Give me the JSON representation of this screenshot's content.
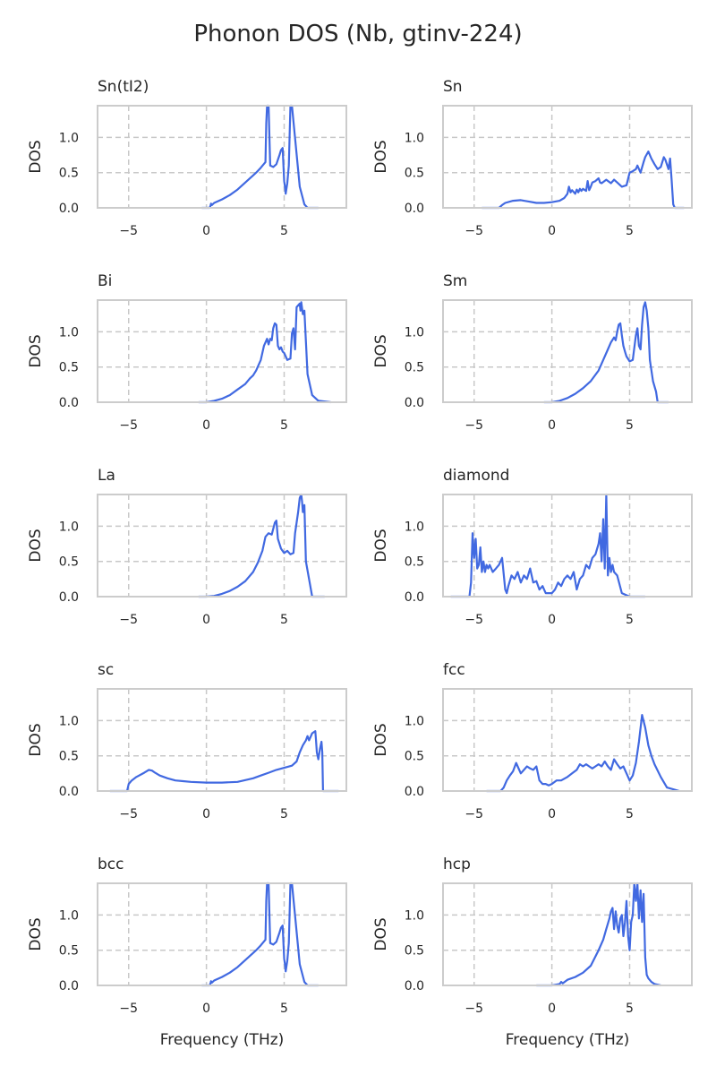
{
  "figure": {
    "title": "Phonon DOS (Nb, gtinv-224)"
  },
  "chart_data": [
    {
      "type": "line",
      "title": "Sn(tI2)",
      "xlabel": "",
      "ylabel": "DOS",
      "xlim": [
        -7,
        9
      ],
      "ylim": [
        0,
        1.45
      ],
      "xticks": [
        -5,
        0,
        5
      ],
      "yticks": [
        0.0,
        0.5,
        1.0
      ],
      "grid": true,
      "series": [
        {
          "x": [
            -0.3,
            0.2,
            0.25,
            0.3,
            0.35,
            0.5,
            1,
            1.5,
            2,
            2.5,
            3,
            3.2,
            3.5,
            3.8,
            3.85,
            3.9,
            4,
            4.1,
            4.3,
            4.5,
            4.7,
            4.8,
            4.9,
            5,
            5.05,
            5.1,
            5.2,
            5.3,
            5.4,
            5.5,
            6,
            6.3,
            6.5,
            7.2
          ],
          "y": [
            0,
            0,
            0.02,
            0.06,
            0.04,
            0.07,
            0.12,
            0.18,
            0.26,
            0.36,
            0.46,
            0.5,
            0.57,
            0.65,
            1.2,
            1.45,
            1.45,
            0.6,
            0.58,
            0.62,
            0.75,
            0.82,
            0.85,
            0.38,
            0.3,
            0.2,
            0.35,
            0.6,
            1.45,
            1.45,
            0.3,
            0.05,
            0,
            0
          ]
        }
      ]
    },
    {
      "type": "line",
      "title": "Sn",
      "xlabel": "",
      "ylabel": "DOS",
      "xlim": [
        -7,
        9
      ],
      "ylim": [
        0,
        1.45
      ],
      "xticks": [
        -5,
        0,
        5
      ],
      "yticks": [
        0.0,
        0.5,
        1.0
      ],
      "grid": true,
      "series": [
        {
          "x": [
            -4.5,
            -3.4,
            -3.2,
            -3,
            -2.5,
            -2,
            -1.8,
            -1.5,
            -1,
            -0.5,
            0,
            0.5,
            0.8,
            1,
            1.1,
            1.2,
            1.3,
            1.5,
            1.6,
            1.7,
            1.8,
            1.9,
            2,
            2.2,
            2.3,
            2.4,
            2.5,
            2.6,
            2.8,
            3,
            3.1,
            3.2,
            3.5,
            3.8,
            4,
            4.2,
            4.5,
            4.8,
            5,
            5.2,
            5.4,
            5.5,
            5.7,
            5.9,
            6,
            6.2,
            6.4,
            6.6,
            6.8,
            7,
            7.1,
            7.2,
            7.3,
            7.5,
            7.6,
            7.7,
            7.8,
            7.9,
            8.5
          ],
          "y": [
            0,
            0,
            0.04,
            0.07,
            0.1,
            0.11,
            0.1,
            0.09,
            0.07,
            0.07,
            0.08,
            0.1,
            0.14,
            0.2,
            0.3,
            0.22,
            0.25,
            0.2,
            0.26,
            0.22,
            0.27,
            0.24,
            0.27,
            0.24,
            0.38,
            0.25,
            0.3,
            0.36,
            0.38,
            0.42,
            0.36,
            0.35,
            0.4,
            0.35,
            0.4,
            0.36,
            0.3,
            0.32,
            0.5,
            0.52,
            0.55,
            0.6,
            0.5,
            0.65,
            0.72,
            0.8,
            0.7,
            0.62,
            0.55,
            0.58,
            0.65,
            0.72,
            0.68,
            0.55,
            0.7,
            0.4,
            0.05,
            0,
            0
          ]
        }
      ]
    },
    {
      "type": "line",
      "title": "Bi",
      "xlabel": "",
      "ylabel": "DOS",
      "xlim": [
        -7,
        9
      ],
      "ylim": [
        0,
        1.45
      ],
      "xticks": [
        -5,
        0,
        5
      ],
      "yticks": [
        0.0,
        0.5,
        1.0
      ],
      "grid": true,
      "series": [
        {
          "x": [
            -0.5,
            0,
            0.5,
            1,
            1.5,
            2,
            2.5,
            2.8,
            3,
            3.2,
            3.5,
            3.7,
            3.9,
            4,
            4.1,
            4.2,
            4.3,
            4.4,
            4.5,
            4.6,
            4.7,
            4.8,
            4.9,
            5,
            5.2,
            5.4,
            5.5,
            5.6,
            5.7,
            5.8,
            6,
            6.05,
            6.1,
            6.2,
            6.3,
            6.5,
            6.8,
            7.2,
            8
          ],
          "y": [
            0,
            0,
            0.02,
            0.05,
            0.1,
            0.18,
            0.26,
            0.34,
            0.38,
            0.45,
            0.6,
            0.8,
            0.9,
            0.82,
            0.9,
            0.88,
            1.05,
            1.12,
            1.1,
            0.8,
            0.75,
            0.78,
            0.72,
            0.7,
            0.6,
            0.62,
            0.98,
            1.05,
            0.75,
            1.35,
            1.4,
            1.3,
            1.42,
            1.25,
            1.3,
            0.4,
            0.1,
            0.02,
            0
          ]
        }
      ]
    },
    {
      "type": "line",
      "title": "Sm",
      "xlabel": "",
      "ylabel": "DOS",
      "xlim": [
        -7,
        9
      ],
      "ylim": [
        0,
        1.45
      ],
      "xticks": [
        -5,
        0,
        5
      ],
      "yticks": [
        0.0,
        0.5,
        1.0
      ],
      "grid": true,
      "series": [
        {
          "x": [
            -0.5,
            0,
            0.5,
            1,
            1.5,
            2,
            2.5,
            3,
            3.3,
            3.6,
            3.8,
            4,
            4.1,
            4.2,
            4.3,
            4.4,
            4.5,
            4.6,
            4.7,
            4.8,
            5,
            5.2,
            5.4,
            5.5,
            5.6,
            5.7,
            5.8,
            5.9,
            6,
            6.1,
            6.2,
            6.3,
            6.5,
            6.7,
            6.8,
            7.5
          ],
          "y": [
            0,
            0,
            0.02,
            0.06,
            0.12,
            0.2,
            0.3,
            0.45,
            0.6,
            0.75,
            0.85,
            0.92,
            0.88,
            1.0,
            1.1,
            1.12,
            0.95,
            0.8,
            0.72,
            0.65,
            0.58,
            0.6,
            0.95,
            1.05,
            0.8,
            0.75,
            1.1,
            1.35,
            1.42,
            1.3,
            1.05,
            0.6,
            0.3,
            0.15,
            0,
            0
          ]
        }
      ]
    },
    {
      "type": "line",
      "title": "La",
      "xlabel": "",
      "ylabel": "DOS",
      "xlim": [
        -7,
        9
      ],
      "ylim": [
        0,
        1.45
      ],
      "xticks": [
        -5,
        0,
        5
      ],
      "yticks": [
        0.0,
        0.5,
        1.0
      ],
      "grid": true,
      "series": [
        {
          "x": [
            -0.5,
            0,
            0.5,
            1,
            1.5,
            2,
            2.5,
            3,
            3.3,
            3.6,
            3.8,
            4,
            4.2,
            4.4,
            4.5,
            4.6,
            4.8,
            5,
            5.2,
            5.4,
            5.6,
            5.7,
            5.9,
            6,
            6.1,
            6.15,
            6.2,
            6.3,
            6.4,
            6.6,
            6.8,
            7.6
          ],
          "y": [
            0,
            0,
            0.01,
            0.04,
            0.08,
            0.14,
            0.22,
            0.35,
            0.48,
            0.65,
            0.85,
            0.9,
            0.88,
            1.05,
            1.08,
            0.82,
            0.68,
            0.62,
            0.65,
            0.6,
            0.62,
            0.9,
            1.2,
            1.4,
            1.45,
            1.35,
            1.2,
            1.3,
            0.5,
            0.25,
            0,
            0
          ]
        }
      ]
    },
    {
      "type": "line",
      "title": "diamond",
      "xlabel": "",
      "ylabel": "DOS",
      "xlim": [
        -7,
        9
      ],
      "ylim": [
        0,
        1.45
      ],
      "xticks": [
        -5,
        0,
        5
      ],
      "yticks": [
        0.0,
        0.5,
        1.0
      ],
      "grid": true,
      "series": [
        {
          "x": [
            -6.5,
            -5.5,
            -5.3,
            -5.2,
            -5.1,
            -5,
            -4.9,
            -4.8,
            -4.7,
            -4.6,
            -4.5,
            -4.4,
            -4.3,
            -4.2,
            -4.1,
            -4,
            -3.8,
            -3.6,
            -3.4,
            -3.2,
            -3,
            -2.9,
            -2.8,
            -2.6,
            -2.4,
            -2.2,
            -2,
            -1.8,
            -1.6,
            -1.4,
            -1.2,
            -1,
            -0.8,
            -0.6,
            -0.4,
            -0.2,
            0,
            0.2,
            0.4,
            0.6,
            0.8,
            1,
            1.2,
            1.4,
            1.6,
            1.8,
            2,
            2.2,
            2.4,
            2.6,
            2.8,
            3,
            3.1,
            3.2,
            3.3,
            3.4,
            3.5,
            3.6,
            3.7,
            3.8,
            3.9,
            4,
            4.2,
            4.5,
            5,
            6
          ],
          "y": [
            0,
            0,
            0,
            0.2,
            0.9,
            0.55,
            0.82,
            0.4,
            0.45,
            0.7,
            0.35,
            0.5,
            0.35,
            0.45,
            0.4,
            0.45,
            0.35,
            0.4,
            0.45,
            0.55,
            0.1,
            0.05,
            0.15,
            0.3,
            0.25,
            0.35,
            0.2,
            0.3,
            0.25,
            0.4,
            0.2,
            0.22,
            0.1,
            0.15,
            0.05,
            0.05,
            0.05,
            0.1,
            0.2,
            0.15,
            0.25,
            0.3,
            0.25,
            0.35,
            0.1,
            0.25,
            0.3,
            0.45,
            0.4,
            0.55,
            0.6,
            0.75,
            0.9,
            0.5,
            1.1,
            0.4,
            1.45,
            0.3,
            0.55,
            0.35,
            0.45,
            0.35,
            0.3,
            0.05,
            0,
            0
          ]
        }
      ]
    },
    {
      "type": "line",
      "title": "sc",
      "xlabel": "",
      "ylabel": "DOS",
      "xlim": [
        -7,
        9
      ],
      "ylim": [
        0,
        1.45
      ],
      "xticks": [
        -5,
        0,
        5
      ],
      "yticks": [
        0.0,
        0.5,
        1.0
      ],
      "grid": true,
      "series": [
        {
          "x": [
            -6.2,
            -5.1,
            -5,
            -4.8,
            -4.5,
            -4,
            -3.7,
            -3.5,
            -3.3,
            -3,
            -2.5,
            -2,
            -1.5,
            -1,
            0,
            1,
            2,
            3,
            3.5,
            4,
            4.5,
            5,
            5.5,
            5.8,
            6,
            6.2,
            6.4,
            6.5,
            6.6,
            6.8,
            7,
            7.05,
            7.1,
            7.2,
            7.3,
            7.4,
            7.45,
            7.5,
            8.5
          ],
          "y": [
            0,
            0,
            0.1,
            0.15,
            0.2,
            0.26,
            0.3,
            0.29,
            0.26,
            0.22,
            0.18,
            0.15,
            0.14,
            0.13,
            0.12,
            0.12,
            0.13,
            0.18,
            0.22,
            0.26,
            0.3,
            0.33,
            0.36,
            0.42,
            0.55,
            0.65,
            0.72,
            0.78,
            0.72,
            0.82,
            0.85,
            0.72,
            0.55,
            0.45,
            0.6,
            0.7,
            0.55,
            0,
            0
          ]
        }
      ]
    },
    {
      "type": "line",
      "title": "fcc",
      "xlabel": "",
      "ylabel": "DOS",
      "xlim": [
        -7,
        9
      ],
      "ylim": [
        0,
        1.45
      ],
      "xticks": [
        -5,
        0,
        5
      ],
      "yticks": [
        0.0,
        0.5,
        1.0
      ],
      "grid": true,
      "series": [
        {
          "x": [
            -4.2,
            -3.3,
            -3.1,
            -2.9,
            -2.7,
            -2.5,
            -2.3,
            -2.2,
            -2,
            -1.8,
            -1.6,
            -1.4,
            -1.2,
            -1,
            -0.9,
            -0.8,
            -0.6,
            -0.4,
            -0.2,
            0,
            0.3,
            0.6,
            1,
            1.3,
            1.6,
            1.8,
            2,
            2.2,
            2.4,
            2.6,
            2.8,
            3,
            3.2,
            3.4,
            3.6,
            3.8,
            4,
            4.2,
            4.4,
            4.6,
            4.8,
            5,
            5.2,
            5.4,
            5.6,
            5.8,
            6,
            6.2,
            6.4,
            6.6,
            7,
            7.4,
            8.2
          ],
          "y": [
            0,
            0,
            0.05,
            0.15,
            0.22,
            0.28,
            0.4,
            0.35,
            0.25,
            0.3,
            0.35,
            0.32,
            0.3,
            0.35,
            0.25,
            0.15,
            0.1,
            0.1,
            0.08,
            0.1,
            0.15,
            0.15,
            0.2,
            0.25,
            0.3,
            0.38,
            0.35,
            0.38,
            0.35,
            0.32,
            0.35,
            0.38,
            0.35,
            0.42,
            0.35,
            0.3,
            0.45,
            0.38,
            0.32,
            0.35,
            0.25,
            0.15,
            0.22,
            0.4,
            0.7,
            1.08,
            0.9,
            0.65,
            0.5,
            0.38,
            0.2,
            0.05,
            0
          ]
        }
      ]
    },
    {
      "type": "line",
      "title": "bcc",
      "xlabel": "",
      "ylabel": "DOS",
      "xlim": [
        -7,
        9
      ],
      "ylim": [
        0,
        1.45
      ],
      "xticks": [
        -5,
        0,
        5
      ],
      "yticks": [
        0.0,
        0.5,
        1.0
      ],
      "grid": true,
      "series": [
        {
          "x": [
            -0.3,
            0.2,
            0.25,
            0.3,
            0.35,
            0.5,
            1,
            1.5,
            2,
            2.5,
            3,
            3.2,
            3.5,
            3.8,
            3.85,
            3.9,
            4,
            4.1,
            4.3,
            4.5,
            4.7,
            4.8,
            4.9,
            5,
            5.05,
            5.1,
            5.2,
            5.3,
            5.4,
            5.5,
            6,
            6.3,
            6.5,
            7.2
          ],
          "y": [
            0,
            0,
            0.02,
            0.06,
            0.04,
            0.07,
            0.12,
            0.18,
            0.26,
            0.36,
            0.46,
            0.5,
            0.57,
            0.65,
            1.2,
            1.45,
            1.45,
            0.6,
            0.58,
            0.62,
            0.75,
            0.82,
            0.85,
            0.38,
            0.3,
            0.2,
            0.35,
            0.6,
            1.45,
            1.45,
            0.3,
            0.05,
            0,
            0
          ]
        }
      ]
    },
    {
      "type": "line",
      "title": "hcp",
      "xlabel": "",
      "ylabel": "DOS",
      "xlim": [
        -7,
        9
      ],
      "ylim": [
        0,
        1.45
      ],
      "xticks": [
        -5,
        0,
        5
      ],
      "yticks": [
        0.0,
        0.5,
        1.0
      ],
      "grid": true,
      "series": [
        {
          "x": [
            -1,
            0,
            0.5,
            0.6,
            0.7,
            1,
            1.5,
            2,
            2.5,
            3,
            3.3,
            3.5,
            3.7,
            3.8,
            3.9,
            4,
            4.1,
            4.2,
            4.3,
            4.4,
            4.5,
            4.6,
            4.7,
            4.8,
            4.9,
            5,
            5.1,
            5.2,
            5.3,
            5.4,
            5.5,
            5.6,
            5.7,
            5.8,
            5.9,
            6,
            6.1,
            6.2,
            6.4,
            6.6,
            7
          ],
          "y": [
            0,
            0,
            0.02,
            0.05,
            0.03,
            0.08,
            0.12,
            0.18,
            0.28,
            0.5,
            0.65,
            0.8,
            0.95,
            1.05,
            1.1,
            0.8,
            1.05,
            0.85,
            0.75,
            0.95,
            1.0,
            0.7,
            0.9,
            1.2,
            0.7,
            0.5,
            0.9,
            1.0,
            1.45,
            1.2,
            1.45,
            0.95,
            1.35,
            0.9,
            1.3,
            0.4,
            0.15,
            0.1,
            0.05,
            0.02,
            0
          ]
        }
      ]
    }
  ]
}
